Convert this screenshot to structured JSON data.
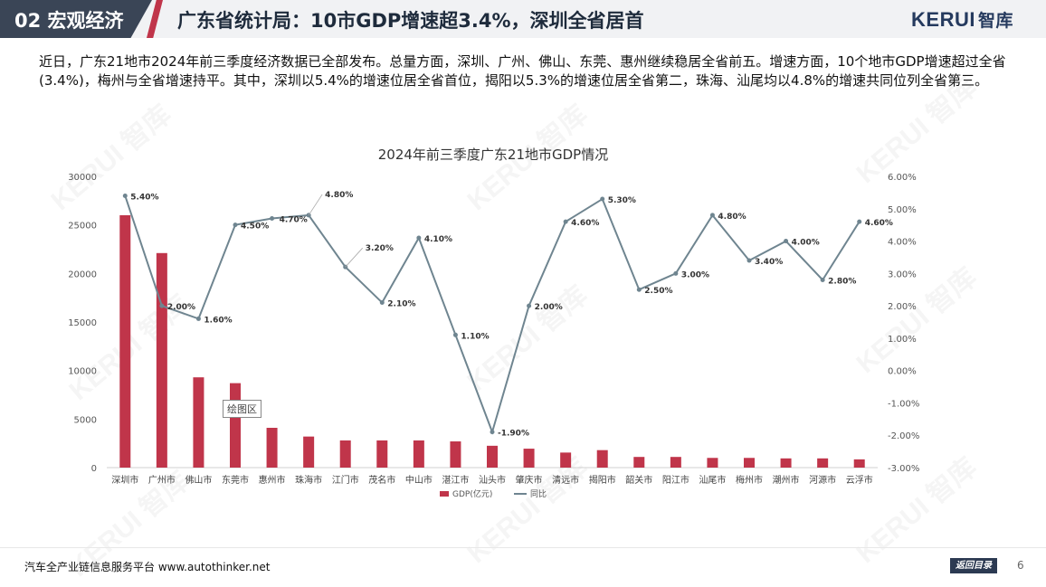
{
  "header": {
    "section": "02 宏观经济",
    "title": "广东省统计局：10市GDP增速超3.4%，深圳全省居首",
    "logo_text": "KERUI",
    "logo_cn": "智库"
  },
  "paragraph": "近日，广东21地市2024年前三季度经济数据已全部发布。总量方面，深圳、广州、佛山、东莞、惠州继续稳居全省前五。增速方面，10个地市GDP增速超过全省(3.4%)，梅州与全省增速持平。其中，深圳以5.4%的增速位居全省首位，揭阳以5.3%的增速位居全省第二，珠海、汕尾均以4.8%的增速共同位列全省第三。",
  "watermark": "KERUI 智库",
  "tooltip": "绘图区",
  "chart_data": {
    "type": "bar+line",
    "title": "2024年前三季度广东21地市GDP情况",
    "categories": [
      "深圳市",
      "广州市",
      "佛山市",
      "东莞市",
      "惠州市",
      "珠海市",
      "江门市",
      "茂名市",
      "中山市",
      "湛江市",
      "汕头市",
      "肇庆市",
      "清远市",
      "揭阳市",
      "韶关市",
      "阳江市",
      "汕尾市",
      "梅州市",
      "潮州市",
      "河源市",
      "云浮市"
    ],
    "series": [
      {
        "name": "GDP(亿元)",
        "type": "bar",
        "axis": "left",
        "color": "#c0354a",
        "values": [
          26000,
          22100,
          9300,
          8700,
          4100,
          3200,
          2800,
          2800,
          2800,
          2700,
          2250,
          1950,
          1550,
          1800,
          1100,
          1100,
          1000,
          1000,
          950,
          950,
          850
        ]
      },
      {
        "name": "同比",
        "type": "line",
        "axis": "right",
        "color": "#6f8590",
        "values": [
          5.4,
          2.0,
          1.6,
          4.5,
          4.7,
          4.8,
          3.2,
          2.1,
          4.1,
          1.1,
          -1.9,
          2.0,
          4.6,
          5.3,
          2.5,
          3.0,
          4.8,
          3.4,
          4.0,
          2.8,
          4.6
        ],
        "labels": [
          "5.40%",
          "2.00%",
          "1.60%",
          "4.50%",
          "4.70%",
          "4.80%",
          "3.20%",
          "2.10%",
          "4.10%",
          "1.10%",
          "-1.90%",
          "2.00%",
          "4.60%",
          "5.30%",
          "2.50%",
          "3.00%",
          "4.80%",
          "3.40%",
          "4.00%",
          "2.80%",
          "4.60%"
        ]
      }
    ],
    "y_left": {
      "min": 0,
      "max": 30000,
      "step": 5000,
      "ticks": [
        "0",
        "5000",
        "10000",
        "15000",
        "20000",
        "25000",
        "30000"
      ]
    },
    "y_right": {
      "min": -3,
      "max": 6,
      "step": 1,
      "ticks": [
        "-3.00%",
        "-2.00%",
        "-1.00%",
        "0.00%",
        "1.00%",
        "2.00%",
        "3.00%",
        "4.00%",
        "5.00%",
        "6.00%"
      ]
    },
    "legend": "bottom",
    "grid": false
  },
  "footer": {
    "platform": "汽车全产业链信息服务平台 www.autothinker.net",
    "return_label": "返回目录",
    "page": "6"
  }
}
